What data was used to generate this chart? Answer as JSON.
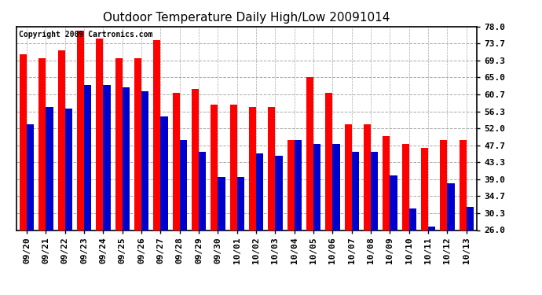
{
  "title": "Outdoor Temperature Daily High/Low 20091014",
  "copyright": "Copyright 2009 Cartronics.com",
  "dates": [
    "09/20",
    "09/21",
    "09/22",
    "09/23",
    "09/24",
    "09/25",
    "09/26",
    "09/27",
    "09/28",
    "09/29",
    "09/30",
    "10/01",
    "10/02",
    "10/03",
    "10/04",
    "10/05",
    "10/06",
    "10/07",
    "10/08",
    "10/09",
    "10/10",
    "10/11",
    "10/12",
    "10/13"
  ],
  "highs": [
    71.0,
    70.0,
    72.0,
    77.0,
    75.0,
    70.0,
    70.0,
    74.5,
    61.0,
    62.0,
    58.0,
    58.0,
    57.5,
    57.5,
    49.0,
    65.0,
    61.0,
    53.0,
    53.0,
    50.0,
    48.0,
    47.0,
    49.0,
    49.0
  ],
  "lows": [
    53.0,
    57.5,
    57.0,
    63.0,
    63.0,
    62.5,
    61.5,
    55.0,
    49.0,
    46.0,
    39.5,
    39.5,
    45.5,
    45.0,
    49.0,
    48.0,
    48.0,
    46.0,
    46.0,
    40.0,
    31.5,
    27.0,
    38.0,
    32.0
  ],
  "high_color": "#ff0000",
  "low_color": "#0000cc",
  "bar_width": 0.38,
  "ylim_lo": 26.0,
  "ylim_hi": 78.0,
  "yticks": [
    26.0,
    30.3,
    34.7,
    39.0,
    43.3,
    47.7,
    52.0,
    56.3,
    60.7,
    65.0,
    69.3,
    73.7,
    78.0
  ],
  "bg_color": "#ffffff",
  "grid_color": "#aaaaaa",
  "title_fontsize": 11,
  "tick_fontsize": 8,
  "copyright_fontsize": 7
}
